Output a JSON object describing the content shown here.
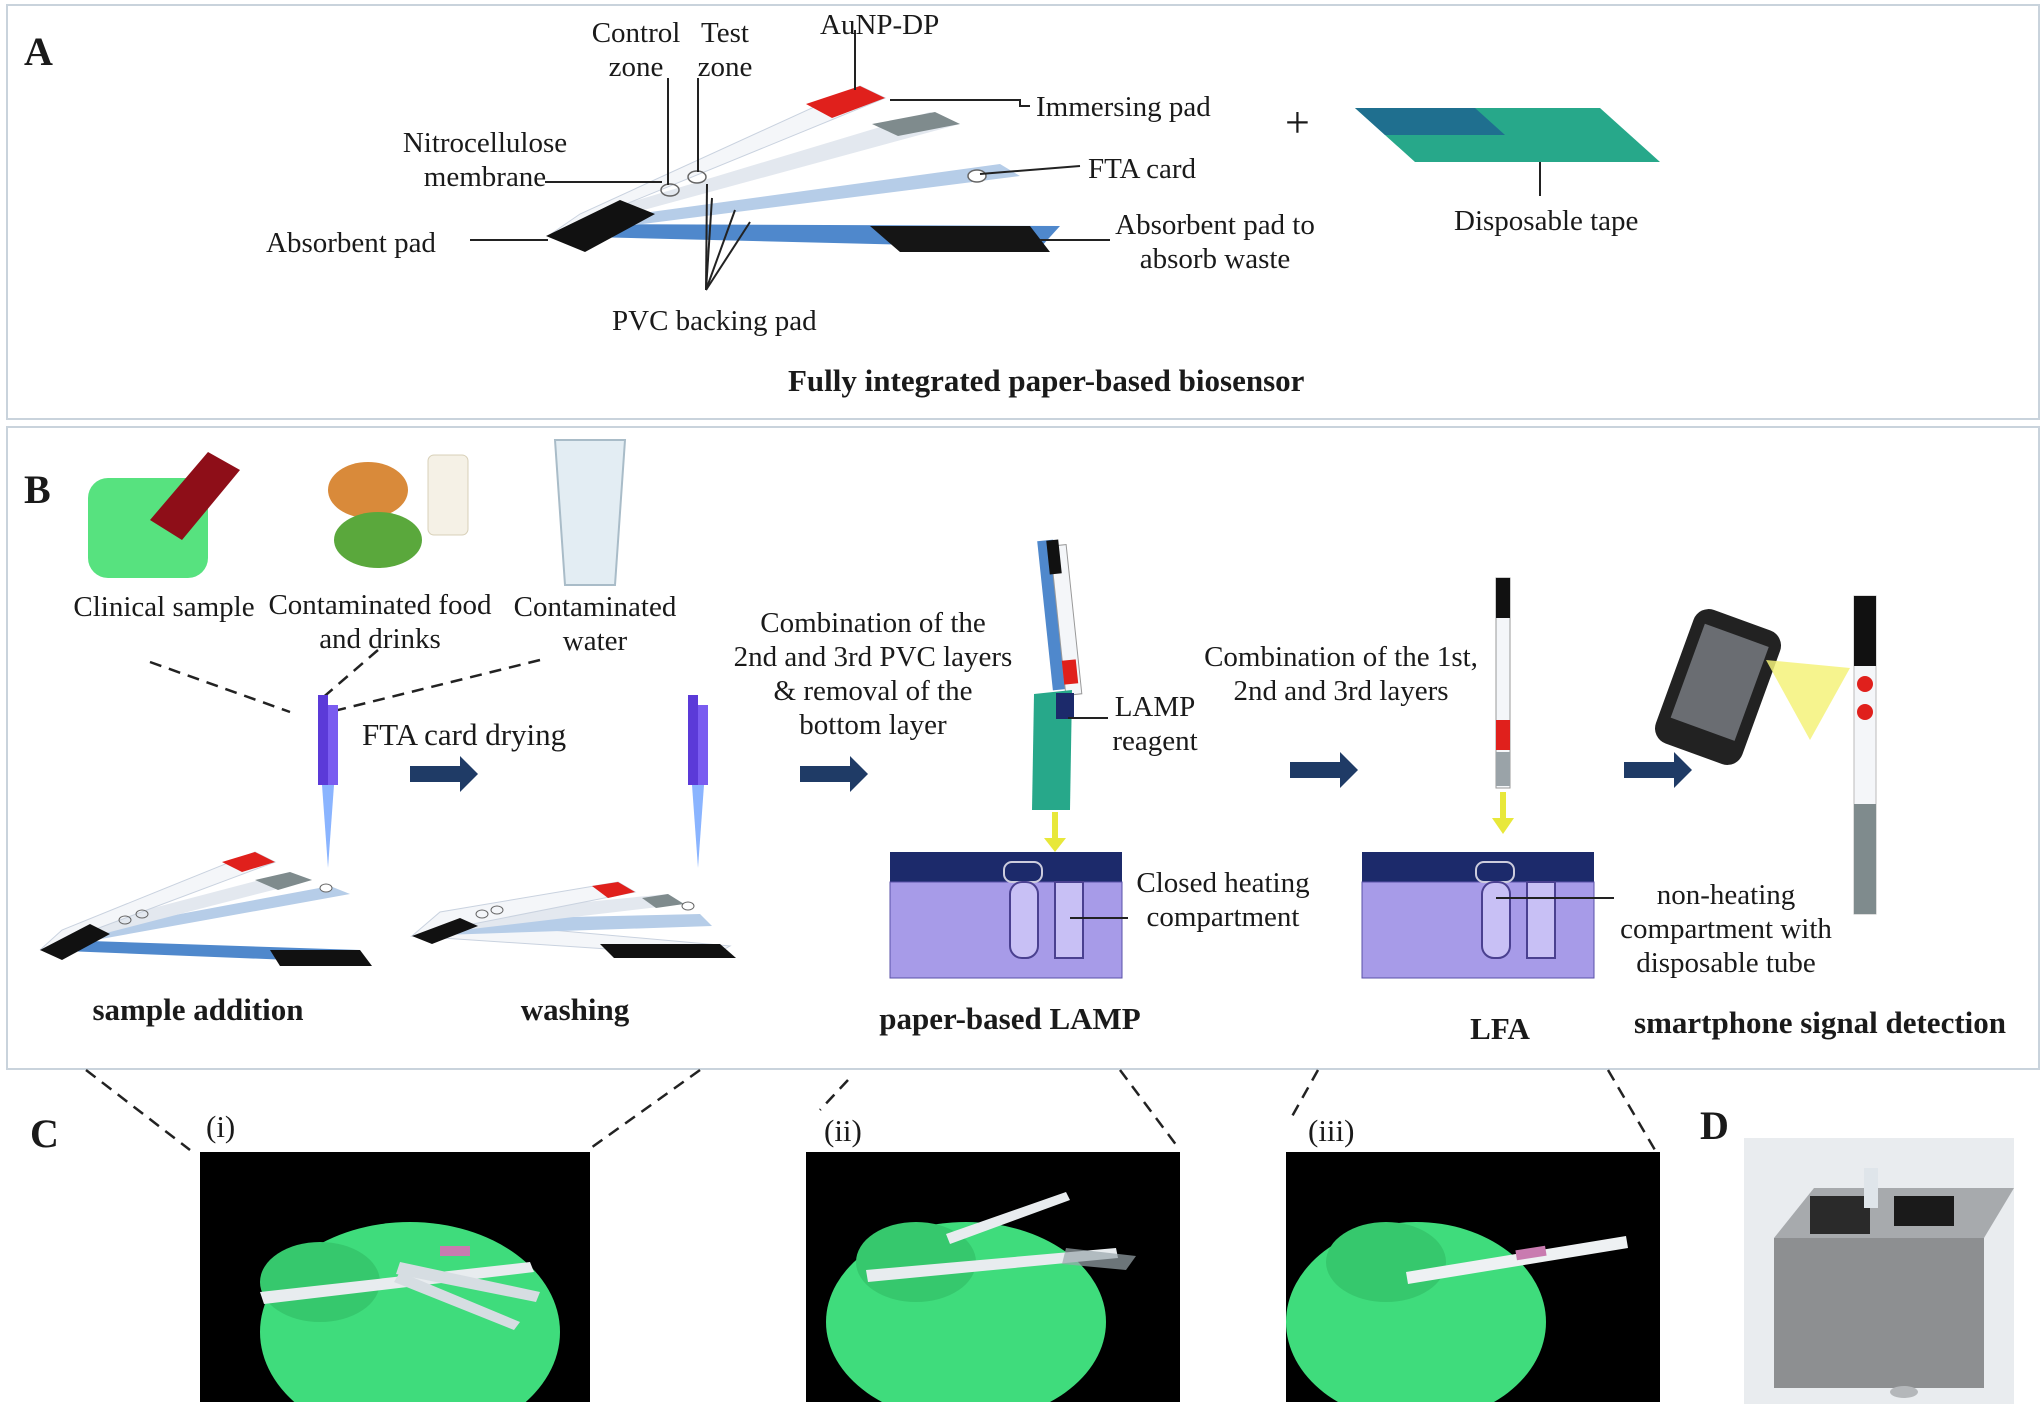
{
  "panel_a": {
    "label": "A",
    "control_zone": [
      "Control",
      "zone"
    ],
    "test_zone": [
      "Test",
      "zone"
    ],
    "aunp_dp": "AuNP-DP",
    "immersing_pad": "Immersing pad",
    "nitrocellulose": [
      "Nitrocellulose",
      "membrane"
    ],
    "fta_card": "FTA card",
    "absorbent_pad": "Absorbent pad",
    "absorbent_waste": [
      "Absorbent pad to",
      "absorb waste"
    ],
    "pvc_backing": "PVC backing pad",
    "plus": "+",
    "disposable_tape": "Disposable tape",
    "caption": "Fully integrated paper-based biosensor"
  },
  "panel_b": {
    "label": "B",
    "clinical_sample": "Clinical sample",
    "contaminated_food": [
      "Contaminated food",
      "and drinks"
    ],
    "contaminated_water": [
      "Contaminated",
      "water"
    ],
    "fta_drying": "FTA card drying",
    "combination_2_3": [
      "Combination of the",
      "2nd and 3rd PVC layers",
      "& removal of the",
      "bottom layer"
    ],
    "lamp_reagent": [
      "LAMP",
      "reagent"
    ],
    "closed_heating": [
      "Closed heating",
      "compartment"
    ],
    "combination_1_2_3": [
      "Combination of the 1st,",
      "2nd and 3rd layers"
    ],
    "non_heating": [
      "non-heating",
      "compartment with",
      "disposable tube"
    ],
    "steps": [
      "sample addition",
      "washing",
      "paper-based LAMP",
      "LFA",
      "smartphone signal detection"
    ]
  },
  "panel_c": {
    "label": "C",
    "photos": [
      "(i)",
      "(ii)",
      "(iii)"
    ]
  },
  "panel_d": {
    "label": "D"
  },
  "colors": {
    "red_zone": "#e0201c",
    "strip_blue": "#5b8fd0",
    "tape_teal": "#27a88a",
    "dropper_purple": "#5b3ad8",
    "device_lavender": "#a79be8",
    "device_navy": "#1c2a6b",
    "arrow_navy": "#1f3b66",
    "glove_green": "#4ee68a"
  }
}
